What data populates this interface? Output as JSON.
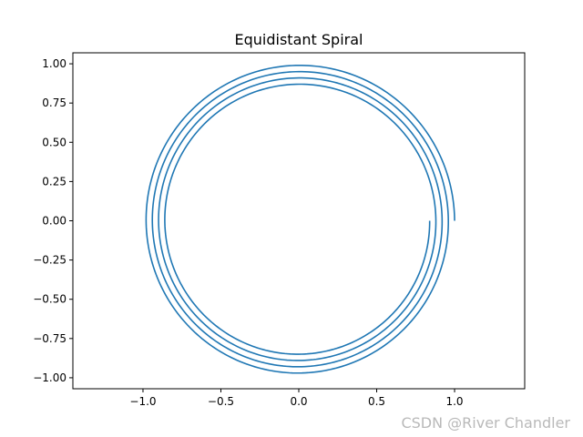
{
  "chart_data": {
    "type": "line",
    "title": "Equidistant Spiral",
    "xlabel": "",
    "ylabel": "",
    "xlim": [
      -1.45,
      1.45
    ],
    "ylim": [
      -1.07,
      1.07
    ],
    "xticks": [
      -1.0,
      -0.5,
      0.0,
      0.5,
      1.0
    ],
    "xtick_labels": [
      "−1.0",
      "−0.5",
      "0.0",
      "0.5",
      "1.0"
    ],
    "yticks": [
      1.0,
      0.75,
      0.5,
      0.25,
      0.0,
      -0.25,
      -0.5,
      -0.75,
      -1.0
    ],
    "ytick_labels": [
      "1.00",
      "0.75",
      "0.50",
      "0.25",
      "0.00",
      "−0.25",
      "−0.50",
      "−0.75",
      "−1.00"
    ],
    "grid": false,
    "series": [
      {
        "color": "#1f77b4",
        "description_values": {
          "curve": "archimedean spiral r = r0 - k*theta",
          "r_start": 1.0,
          "r_end": 0.84,
          "turns": 4,
          "start_point": [
            1.0,
            0.0
          ],
          "end_point": [
            0.84,
            0.0
          ]
        }
      }
    ]
  },
  "watermark": "CSDN @River Chandler"
}
